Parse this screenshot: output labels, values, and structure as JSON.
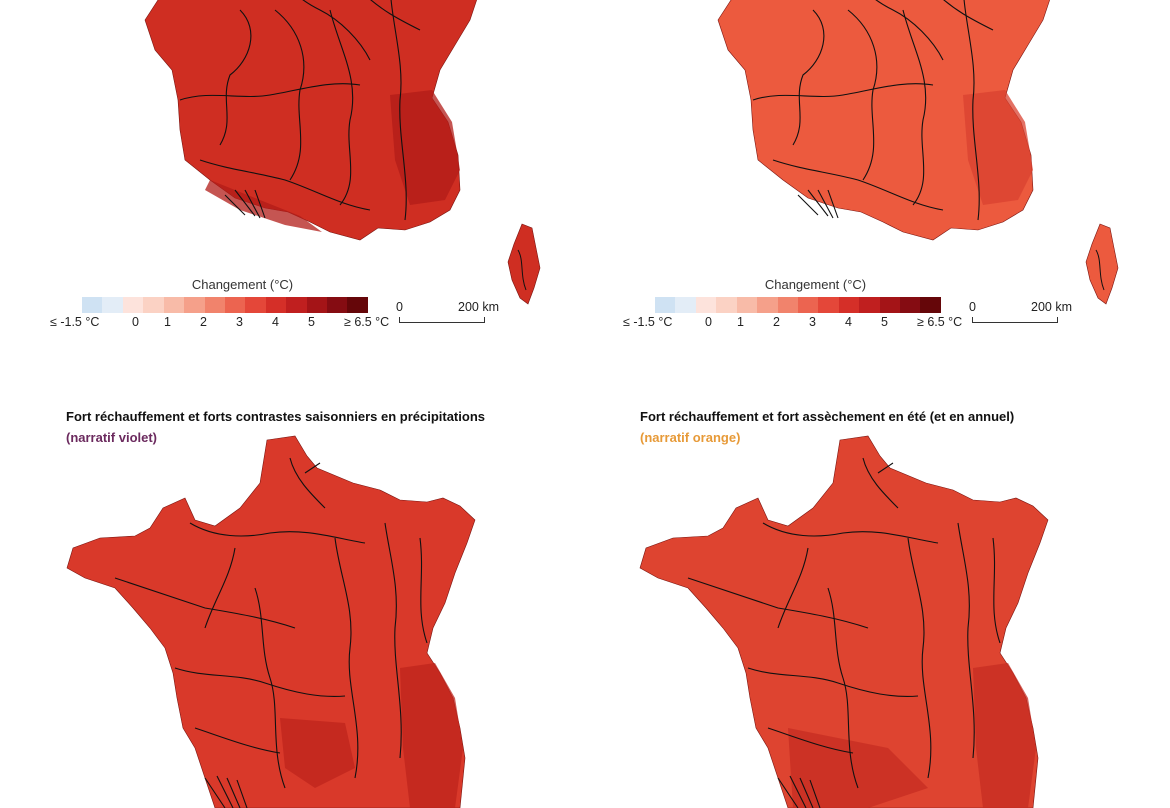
{
  "legend": {
    "title": "Changement (°C)",
    "colors": [
      "#cfe2f3",
      "#e3edf7",
      "#fde3dc",
      "#fbd2c4",
      "#f8bba8",
      "#f5a08a",
      "#f1836c",
      "#ec6450",
      "#e44739",
      "#d52f28",
      "#c01f1f",
      "#a41417",
      "#850c12",
      "#650609"
    ],
    "ticks": [
      "≤ -1.5 °C",
      "0",
      "1",
      "2",
      "3",
      "4",
      "5",
      "≥ 6.5 °C"
    ]
  },
  "scale": {
    "zero": "0",
    "dist": "200 km"
  },
  "panels": [
    {
      "id": "top-left",
      "title": "",
      "subtitle": "",
      "subtitle_color": "",
      "fill": "#cf2e22",
      "dark": "#b21c18"
    },
    {
      "id": "top-right",
      "title": "",
      "subtitle": "",
      "subtitle_color": "",
      "fill": "#ec5a3e",
      "dark": "#d94230"
    },
    {
      "id": "bottom-left",
      "title": "Fort réchauffement et forts contrastes saisonniers en précipitations",
      "subtitle": "(narratif violet)",
      "subtitle_color": "#6b2a5e",
      "fill": "#d9392a",
      "dark": "#bd241c"
    },
    {
      "id": "bottom-right",
      "title": "Fort réchauffement et fort assèchement en été (et en annuel)",
      "subtitle": "(narratif orange)",
      "subtitle_color": "#e79a38",
      "fill": "#de4430",
      "dark": "#c52c22"
    }
  ]
}
